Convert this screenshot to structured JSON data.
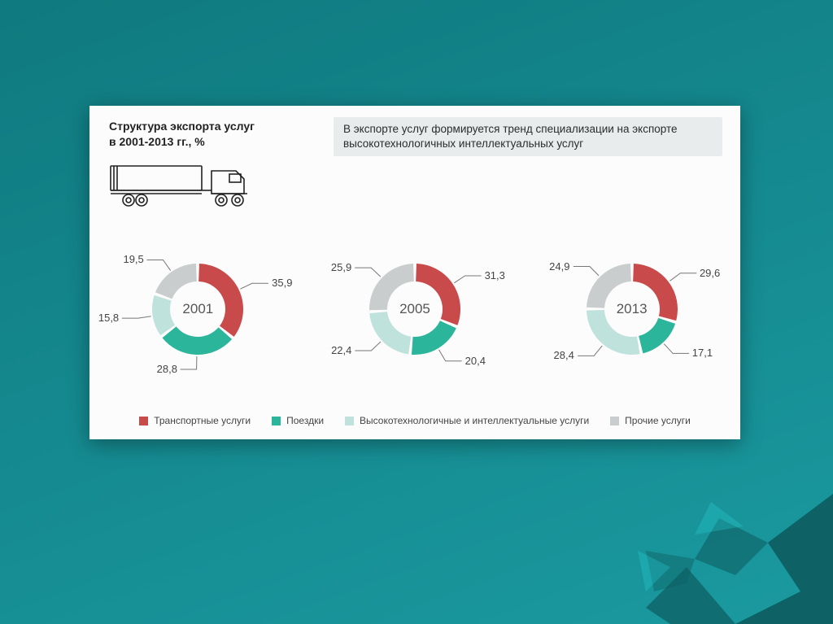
{
  "meta": {
    "title_left": "Структура экспорта услуг\nв 2001-2013 гг., %",
    "title_box": "В экспорте услуг формируется тренд специализации на экспорте высокотехнологичных интеллектуальных услуг"
  },
  "colors": {
    "transport": "#c94a4a",
    "trips": "#2bb59b",
    "hitech": "#bfe2dd",
    "other": "#c9cdce",
    "gap": "#fcfcfc",
    "center": "#fcfcfc",
    "label": "#444444",
    "year": "#555555",
    "head_box_bg": "#e9ecec",
    "card_bg": "#fcfcfc"
  },
  "donut": {
    "outer_r": 56,
    "inner_r": 34,
    "gap_deg": 4,
    "label_fontsize": 13,
    "year_fontsize": 17
  },
  "legend_labels": {
    "transport": "Транспортные услуги",
    "trips": "Поездки",
    "hitech": "Высокотехнологичные и интеллектуальные услуги",
    "other": "Прочие услуги"
  },
  "charts": [
    {
      "year": "2001",
      "segments": [
        {
          "key": "transport",
          "value": 35.9,
          "label": "35,9"
        },
        {
          "key": "trips",
          "value": 28.8,
          "label": "28,8"
        },
        {
          "key": "hitech",
          "value": 15.8,
          "label": "15,8"
        },
        {
          "key": "other",
          "value": 19.5,
          "label": "19,5"
        }
      ]
    },
    {
      "year": "2005",
      "segments": [
        {
          "key": "transport",
          "value": 31.3,
          "label": "31,3"
        },
        {
          "key": "trips",
          "value": 20.4,
          "label": "20,4"
        },
        {
          "key": "hitech",
          "value": 22.4,
          "label": "22,4"
        },
        {
          "key": "other",
          "value": 25.9,
          "label": "25,9"
        }
      ]
    },
    {
      "year": "2013",
      "segments": [
        {
          "key": "transport",
          "value": 29.6,
          "label": "29,6"
        },
        {
          "key": "trips",
          "value": 17.1,
          "label": "17,1"
        },
        {
          "key": "hitech",
          "value": 28.4,
          "label": "28,4"
        },
        {
          "key": "other",
          "value": 24.9,
          "label": "24,9"
        }
      ]
    }
  ]
}
